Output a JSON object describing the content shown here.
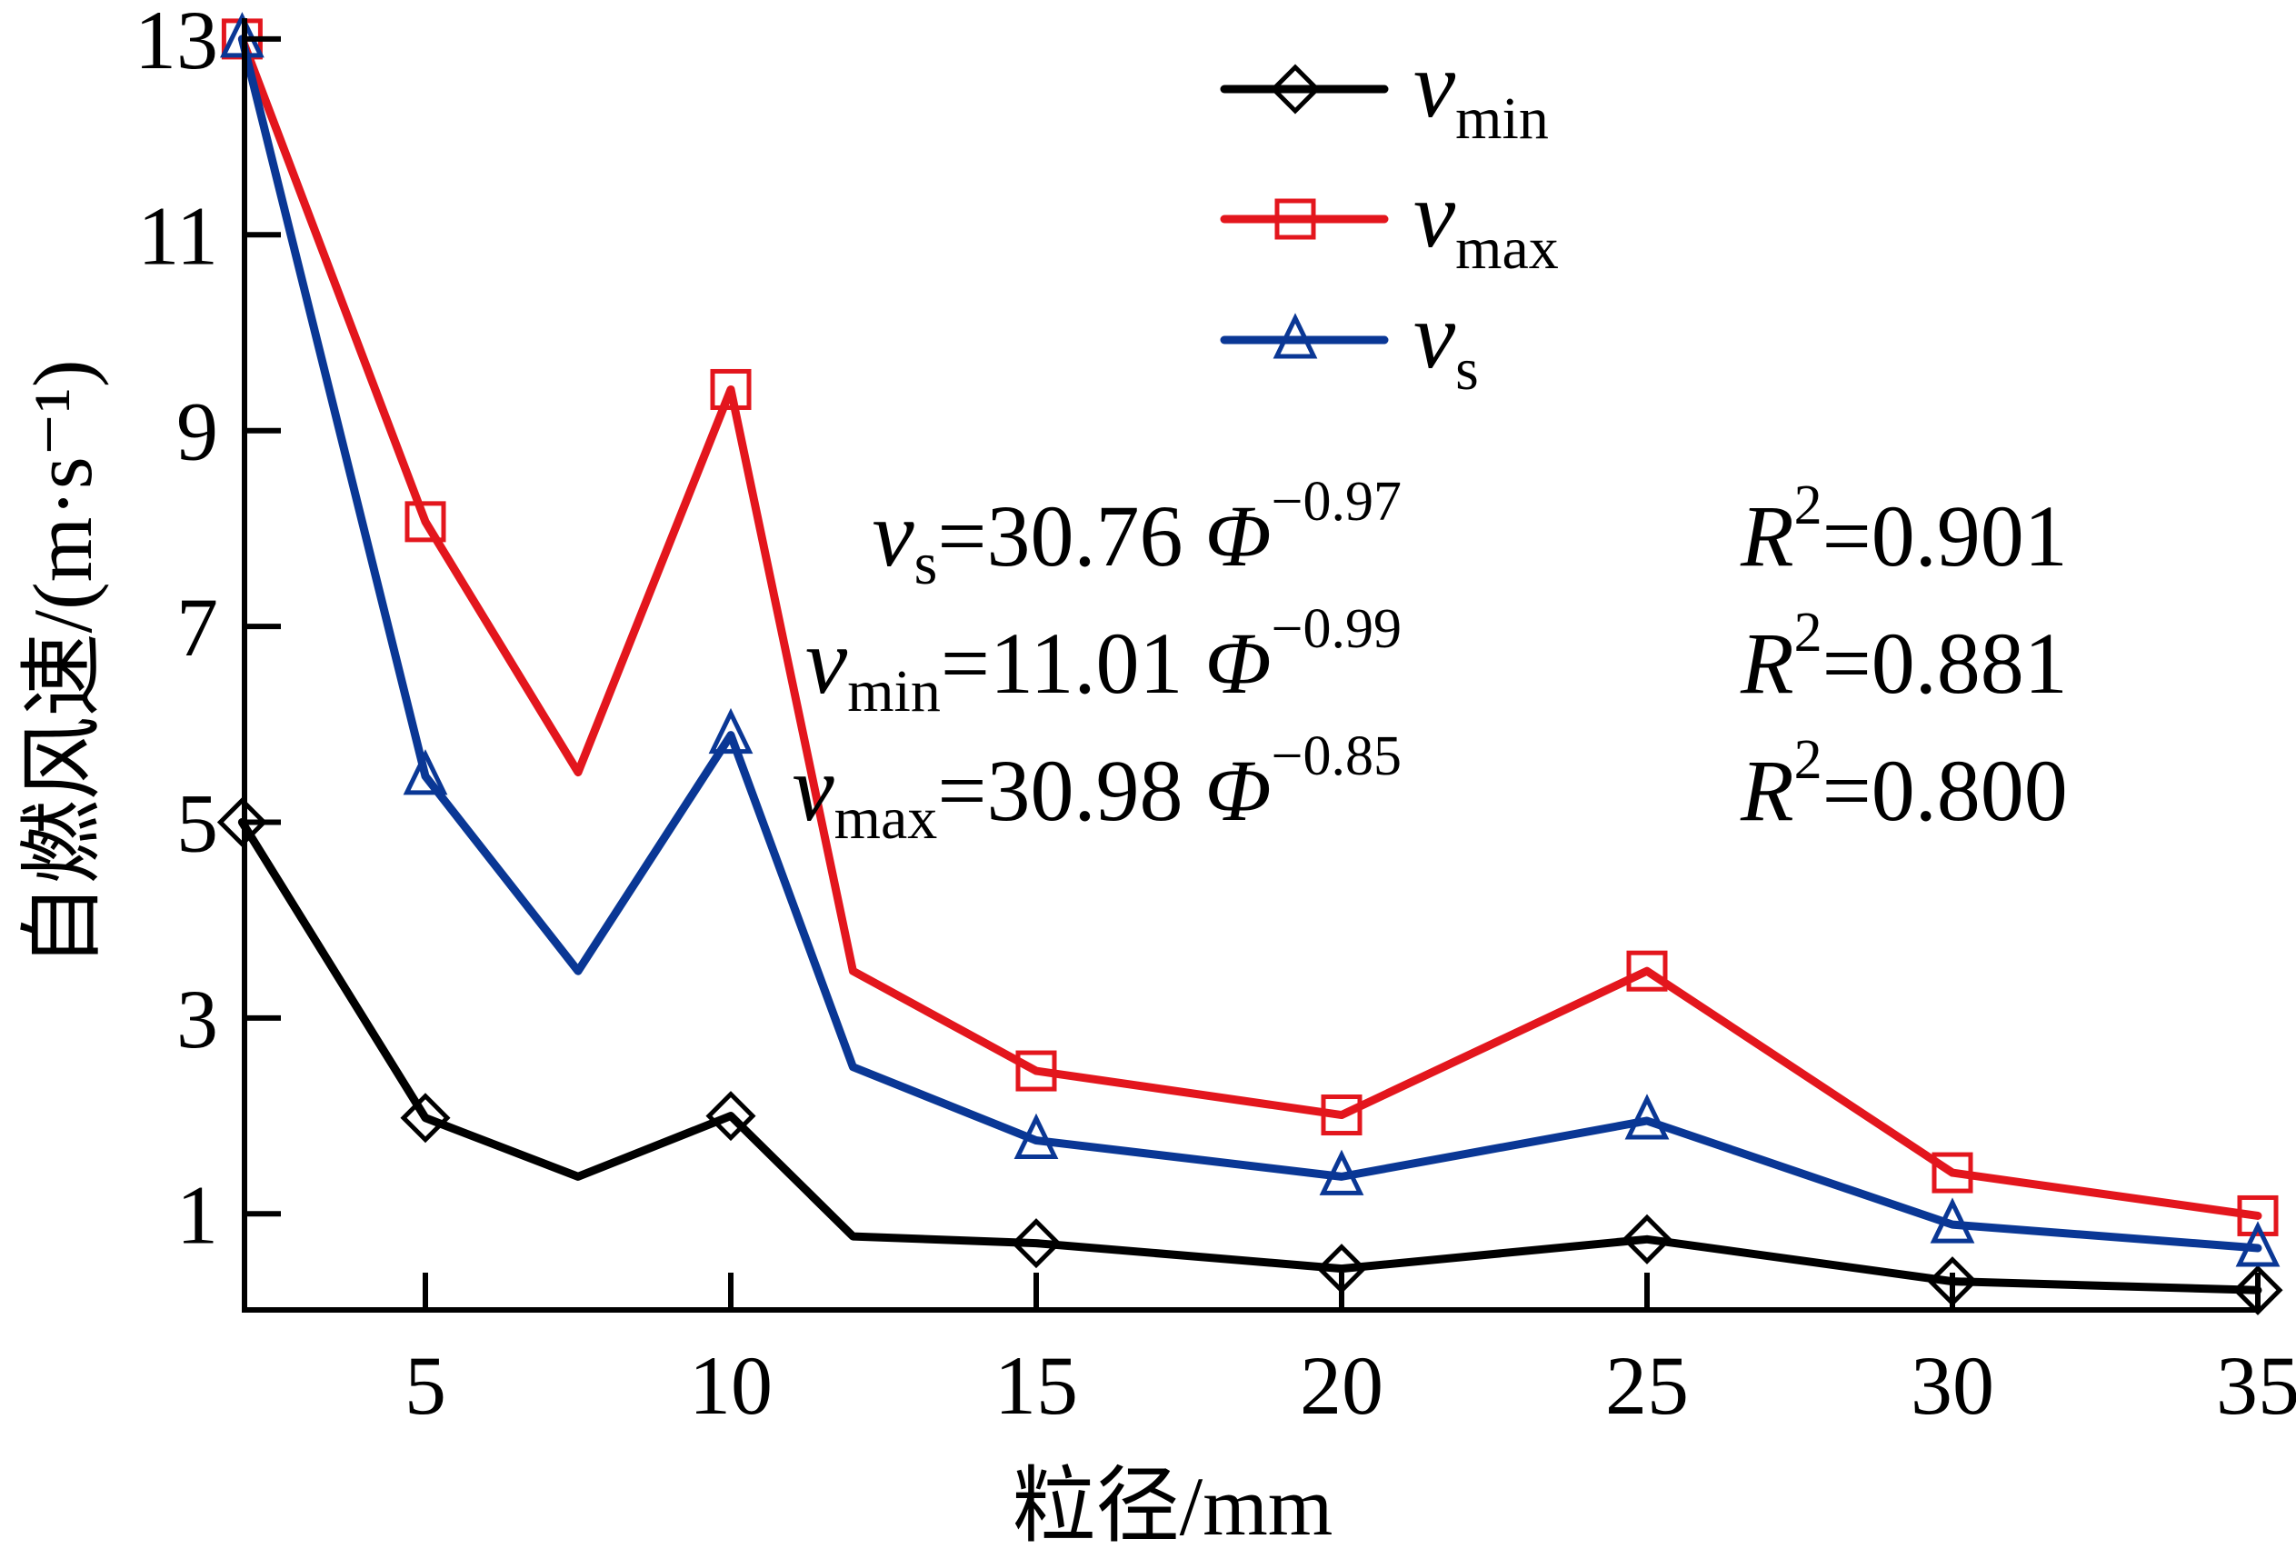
{
  "chart_data": {
    "type": "line",
    "title": "",
    "xlabel": "粒径/mm",
    "ylabel": "自燃风速/(m·s⁻¹)",
    "xlim": [
      2,
      35
    ],
    "ylim": [
      0,
      13
    ],
    "x_ticks": [
      5,
      10,
      15,
      20,
      25,
      30,
      35
    ],
    "y_ticks": [
      1,
      3,
      5,
      7,
      9,
      11,
      13
    ],
    "grid": false,
    "legend_position": "top-right",
    "x": [
      2,
      5,
      7.5,
      10,
      12,
      15,
      20,
      25,
      30,
      35
    ],
    "series": [
      {
        "name": "v_min",
        "label_main": "v",
        "label_sub": "min",
        "color": "#000000",
        "marker": "diamond",
        "values": [
          5.0,
          1.98,
          1.38,
          2.0,
          0.77,
          0.7,
          0.44,
          0.74,
          0.31,
          0.22
        ],
        "marker_indices": [
          0,
          1,
          3,
          5,
          6,
          7,
          8,
          9
        ]
      },
      {
        "name": "v_max",
        "label_main": "v",
        "label_sub": "max",
        "color": "#e3161d",
        "marker": "square",
        "values": [
          13.0,
          8.07,
          5.51,
          9.42,
          3.48,
          2.46,
          2.01,
          3.48,
          1.42,
          0.98
        ],
        "marker_indices": [
          0,
          1,
          3,
          5,
          6,
          7,
          8,
          9
        ]
      },
      {
        "name": "v_s",
        "label_main": "v",
        "label_sub": "s",
        "color": "#0a3795",
        "marker": "triangle",
        "values": [
          13.0,
          5.47,
          3.48,
          5.89,
          2.5,
          1.75,
          1.38,
          1.95,
          0.89,
          0.65
        ],
        "marker_indices": [
          0,
          1,
          3,
          5,
          6,
          7,
          8,
          9
        ]
      }
    ],
    "annotations": [
      {
        "lhs_main": "v",
        "lhs_sub": "s",
        "eq": "=",
        "coef": "30.76",
        "var": "Φ",
        "exp": "−0.97",
        "r_main": "R",
        "r_exp": "2",
        "r_val": "=0.901"
      },
      {
        "lhs_main": "v",
        "lhs_sub": "min",
        "eq": "=",
        "coef": "11.01",
        "var": "Φ",
        "exp": "−0.99",
        "r_main": "R",
        "r_exp": "2",
        "r_val": "=0.881"
      },
      {
        "lhs_main": "v",
        "lhs_sub": "max",
        "eq": "=",
        "coef": "30.98",
        "var": "Φ",
        "exp": "−0.85",
        "r_main": "R",
        "r_exp": "2",
        "r_val": "=0.800"
      }
    ]
  }
}
